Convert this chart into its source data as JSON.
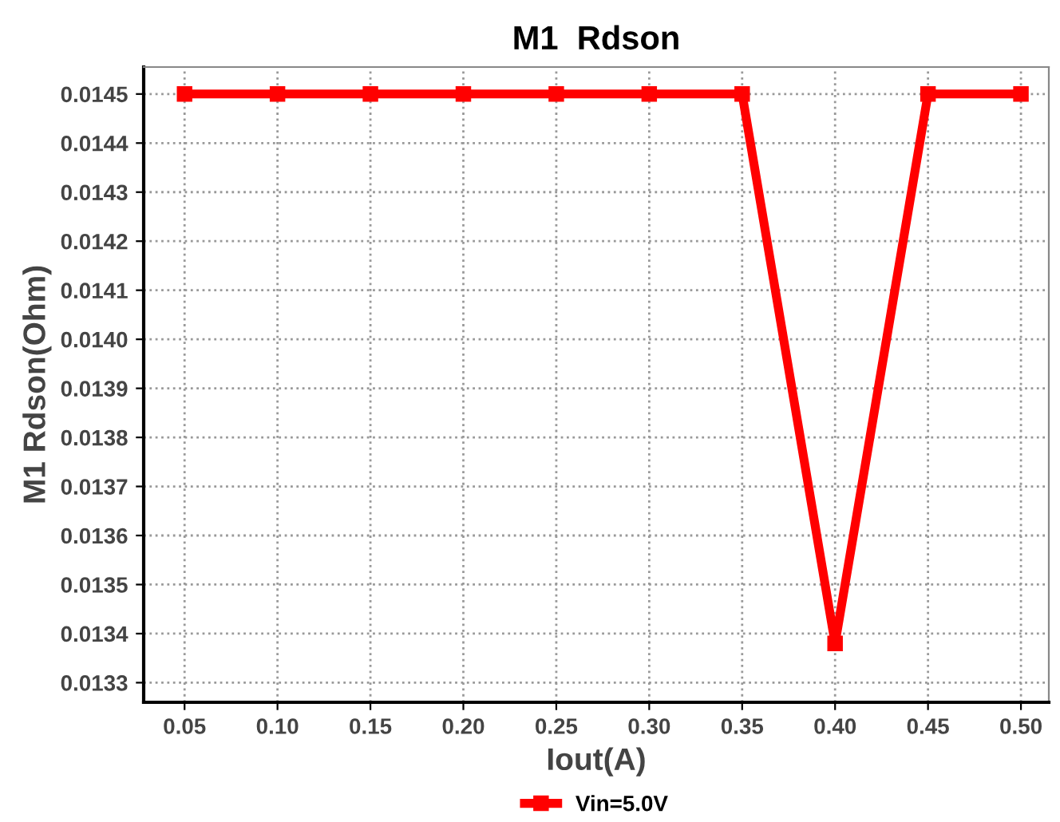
{
  "chart_data": {
    "type": "line",
    "title": "M1  Rdson",
    "xlabel": "Iout(A)",
    "ylabel": "M1 Rdson(Ohm)",
    "x": [
      0.05,
      0.1,
      0.15,
      0.2,
      0.25,
      0.3,
      0.35,
      0.4,
      0.45,
      0.5
    ],
    "series": [
      {
        "name": "Vin=5.0V",
        "color": "#ff0000",
        "values": [
          0.0145,
          0.0145,
          0.0145,
          0.0145,
          0.0145,
          0.0145,
          0.0145,
          0.01338,
          0.0145,
          0.0145
        ]
      }
    ],
    "xlim": [
      0.028,
      0.515
    ],
    "xticks": [
      {
        "value": 0.05,
        "label": "0.05"
      },
      {
        "value": 0.1,
        "label": "0.10"
      },
      {
        "value": 0.15,
        "label": "0.15"
      },
      {
        "value": 0.2,
        "label": "0.20"
      },
      {
        "value": 0.25,
        "label": "0.25"
      },
      {
        "value": 0.3,
        "label": "0.30"
      },
      {
        "value": 0.35,
        "label": "0.35"
      },
      {
        "value": 0.4,
        "label": "0.40"
      },
      {
        "value": 0.45,
        "label": "0.45"
      },
      {
        "value": 0.5,
        "label": "0.50"
      }
    ],
    "ylim": [
      0.01326,
      0.014555
    ],
    "yticks": [
      0.0133,
      0.0134,
      0.0135,
      0.0136,
      0.0137,
      0.0138,
      0.0139,
      {
        "value": 0.014,
        "label": "0.0140"
      },
      0.0141,
      0.0142,
      0.0143,
      0.0144,
      0.0145
    ],
    "grid": true,
    "legend": "bottom",
    "marker": "square",
    "line_style": "solid"
  }
}
